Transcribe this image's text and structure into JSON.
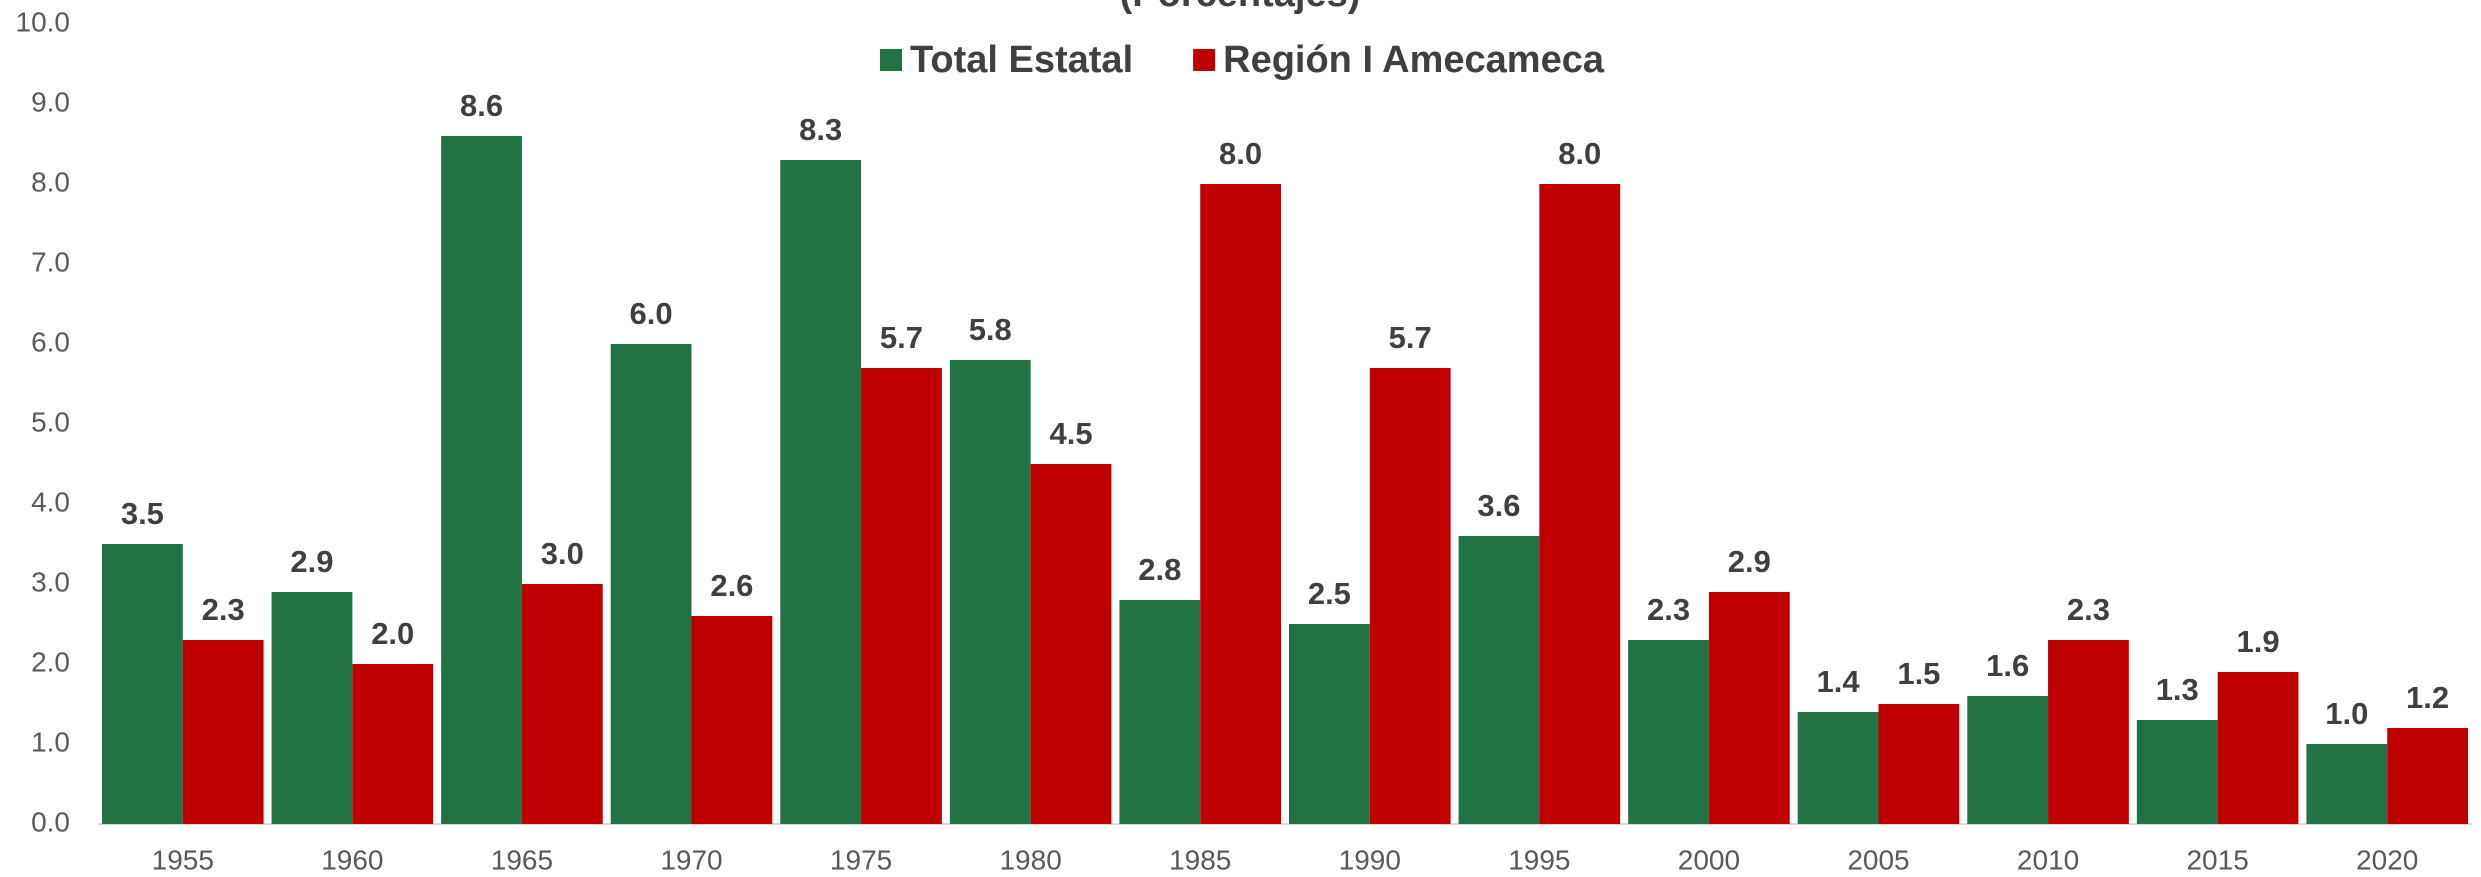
{
  "chart_data": {
    "type": "bar",
    "subtitle": "(Porcentajes)",
    "categories": [
      "1955",
      "1960",
      "1965",
      "1970",
      "1975",
      "1980",
      "1985",
      "1990",
      "1995",
      "2000",
      "2005",
      "2010",
      "2015",
      "2020"
    ],
    "series": [
      {
        "name": "Total Estatal",
        "color": "#217346",
        "values": [
          3.5,
          2.9,
          8.6,
          6.0,
          8.3,
          5.8,
          2.8,
          2.5,
          3.6,
          2.3,
          1.4,
          1.6,
          1.3,
          1.0
        ],
        "value_labels": [
          "3.5",
          "2.9",
          "8.6",
          "6.0",
          "8.3",
          "5.8",
          "2.8",
          "2.5",
          "3.6",
          "2.3",
          "1.4",
          "1.6",
          "1.3",
          "1.0"
        ]
      },
      {
        "name": "Región I Amecameca",
        "color": "#c00000",
        "values": [
          2.3,
          2.0,
          3.0,
          2.6,
          5.7,
          4.5,
          8.0,
          5.7,
          8.0,
          2.9,
          1.5,
          2.3,
          1.9,
          1.2
        ],
        "value_labels": [
          "2.3",
          "2.0",
          "3.0",
          "2.6",
          "5.7",
          "4.5",
          "8.0",
          "5.7",
          "8.0",
          "2.9",
          "1.5",
          "2.3",
          "1.9",
          "1.2"
        ]
      }
    ],
    "ylim": [
      0,
      10
    ],
    "yticks": [
      {
        "value": 0,
        "label": "0.0"
      },
      {
        "value": 1,
        "label": "1.0"
      },
      {
        "value": 2,
        "label": "2.0"
      },
      {
        "value": 3,
        "label": "3.0"
      },
      {
        "value": 4,
        "label": "4.0"
      },
      {
        "value": 5,
        "label": "5.0"
      },
      {
        "value": 6,
        "label": "6.0"
      },
      {
        "value": 7,
        "label": "7.0"
      },
      {
        "value": 8,
        "label": "8.0"
      },
      {
        "value": 9,
        "label": "9.0"
      },
      {
        "value": 10,
        "label": "10.0"
      }
    ],
    "grid": false,
    "legend": "top"
  }
}
